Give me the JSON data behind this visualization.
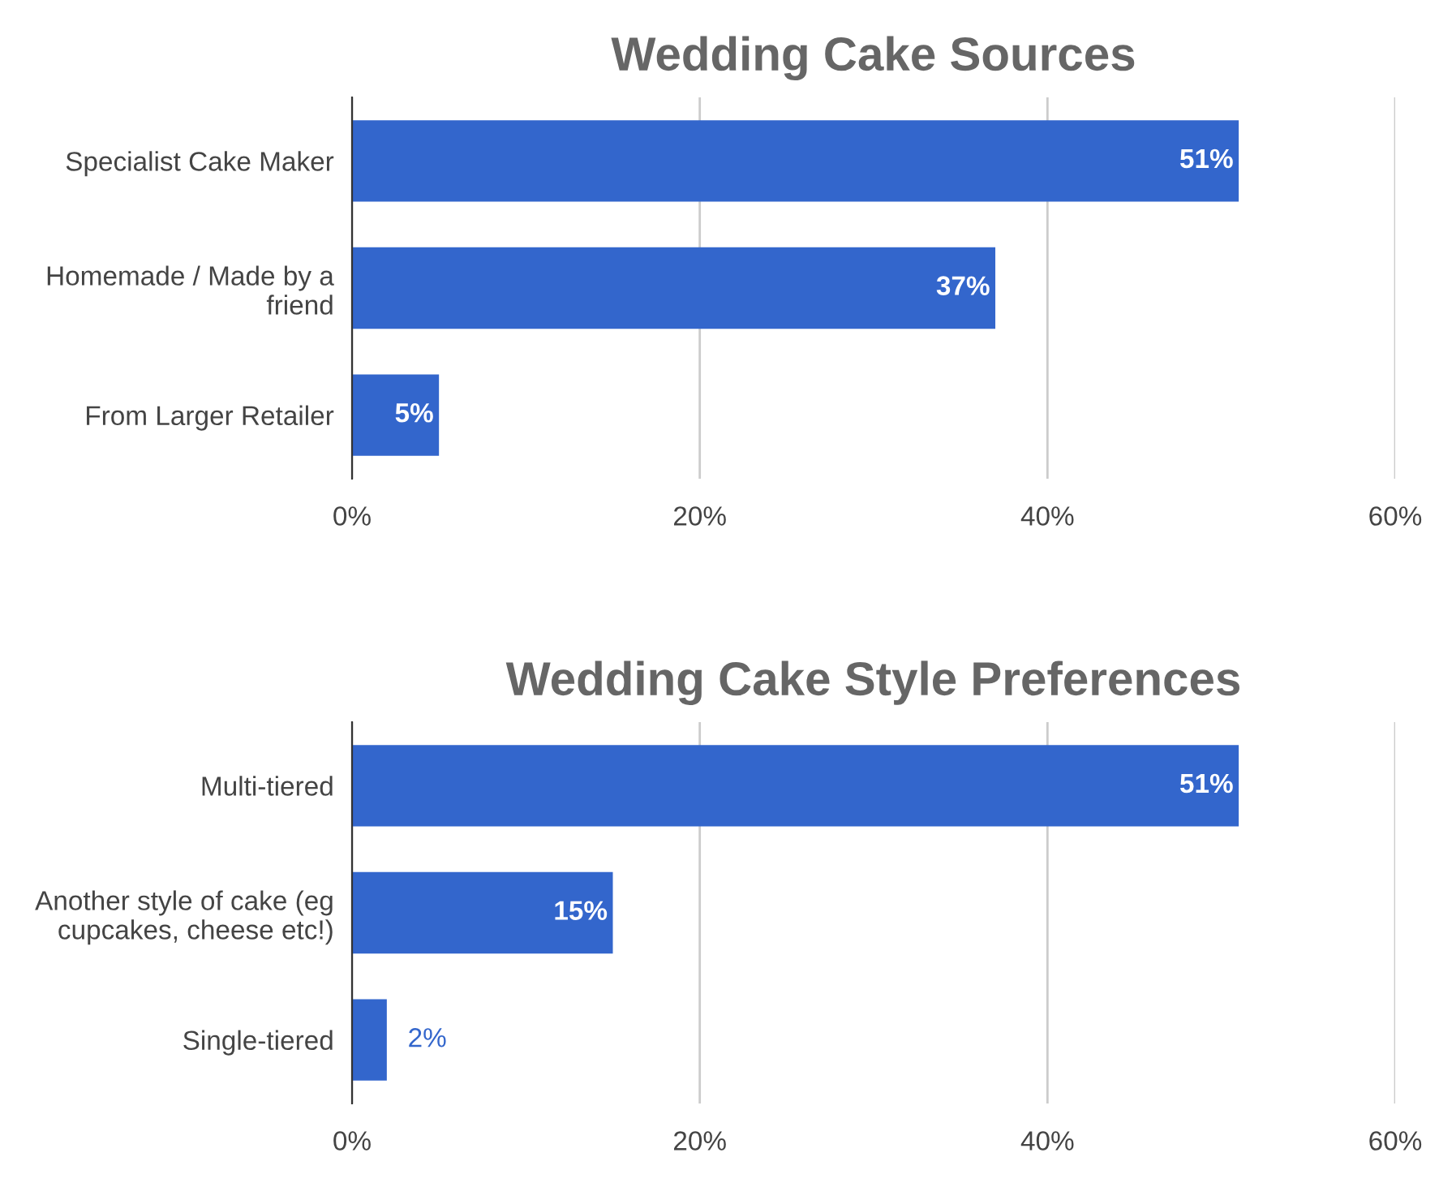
{
  "chart_data": [
    {
      "type": "bar",
      "orientation": "horizontal",
      "title": "Wedding Cake Sources",
      "categories": [
        "Specialist Cake Maker",
        "Homemade / Made by a friend",
        "From Larger Retailer"
      ],
      "values": [
        51,
        37,
        5
      ],
      "color": "#3366cc",
      "value_labels": [
        "51%",
        "37%",
        "5%"
      ],
      "xlim": [
        0,
        60
      ],
      "xticks": [
        {
          "value": 0,
          "label": "0%"
        },
        {
          "value": 20,
          "label": "20%"
        },
        {
          "value": 40,
          "label": "40%"
        },
        {
          "value": 60,
          "label": "60%"
        }
      ],
      "grid": "x"
    },
    {
      "type": "bar",
      "orientation": "horizontal",
      "title": "Wedding Cake Style Preferences",
      "categories": [
        "Multi-tiered",
        "Another style of cake (eg cupcakes, cheese etc!)",
        "Single-tiered"
      ],
      "values": [
        51,
        15,
        2
      ],
      "color": "#3366cc",
      "value_labels": [
        "51%",
        "15%",
        "2%"
      ],
      "xlim": [
        0,
        60
      ],
      "xticks": [
        {
          "value": 0,
          "label": "0%"
        },
        {
          "value": 20,
          "label": "20%"
        },
        {
          "value": 40,
          "label": "40%"
        },
        {
          "value": 60,
          "label": "60%"
        }
      ],
      "grid": "x"
    }
  ]
}
